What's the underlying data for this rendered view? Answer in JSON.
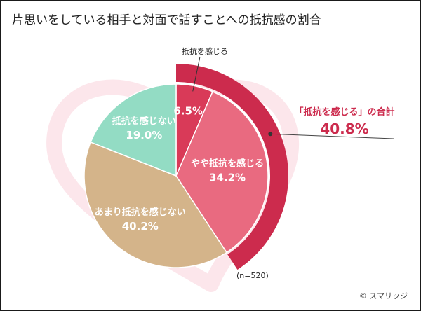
{
  "title": "片思いをしている相手と対面で話すことへの抵抗感の割合",
  "chart_data": {
    "type": "pie",
    "start": "12 o'clock, clockwise",
    "categories": [
      "抵抗を感じる",
      "やや抵抗を感じる",
      "あまり抵抗を感じない",
      "抵抗を感じない"
    ],
    "values": [
      6.5,
      34.2,
      40.2,
      19.0
    ],
    "value_labels": [
      "6.5%",
      "34.2%",
      "40.2%",
      "19.0%"
    ],
    "colors": [
      "#d93a58",
      "#e96a80",
      "#d4b48a",
      "#93dcc4"
    ],
    "highlight": {
      "label": "「抵抗を感じる」の合計",
      "value_label": "40.8%",
      "value": 40.8,
      "color": "#cc2b4d"
    },
    "callout_label": "抵抗を感じる",
    "legend": "none"
  },
  "footnote": "(n=520)",
  "credit": "© スマリッジ"
}
